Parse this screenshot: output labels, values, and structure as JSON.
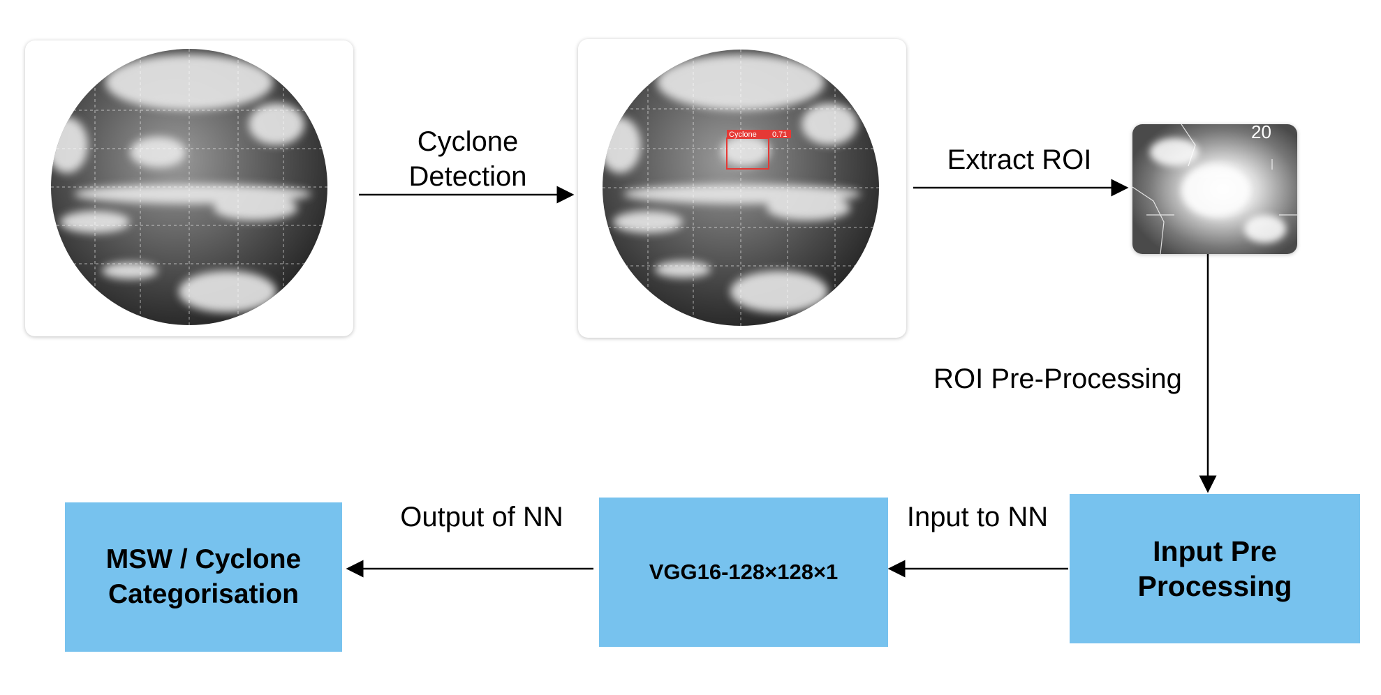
{
  "diagram": {
    "steps": {
      "detection_label_line1": "Cyclone",
      "detection_label_line2": "Detection",
      "extract_label": "Extract ROI",
      "preprocessing_label": "ROI Pre-Processing",
      "input_label": "Input to NN",
      "output_label": "Output of NN"
    },
    "detection_box": {
      "label": "Cyclone",
      "score": "0.71"
    },
    "boxes": {
      "input_pre_line1": "Input Pre",
      "input_pre_line2": "Processing",
      "model": "VGG16-128×128×1",
      "result_line1": "MSW / Cyclone",
      "result_line2": "Categorisation"
    },
    "colors": {
      "box_fill": "#77c2ee",
      "detection_red": "#e53935",
      "arrow": "#000000"
    }
  }
}
